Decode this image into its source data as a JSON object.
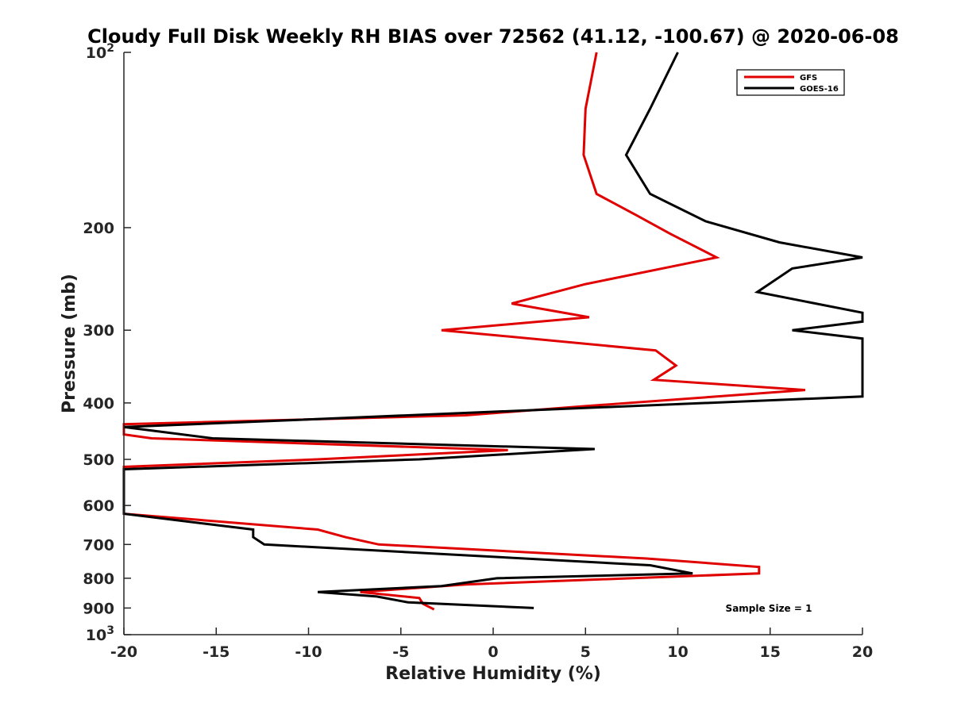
{
  "chart_data": {
    "type": "line",
    "title": "Cloudy Full Disk Weekly RH BIAS over 72562 (41.12, -100.67) @ 2020-06-08",
    "xlabel": "Relative Humidity (%)",
    "ylabel": "Pressure (mb)",
    "xlim": [
      -20,
      20
    ],
    "ylim": [
      100,
      1000
    ],
    "y_scale": "log",
    "y_reversed": true,
    "grid": false,
    "legend_placement": "top-right",
    "x_ticks": [
      "-20",
      "-15",
      "-10",
      "-5",
      "0",
      "5",
      "10",
      "15",
      "20"
    ],
    "y_ticks": [
      {
        "value": 100,
        "base": "10",
        "exp": "2"
      },
      {
        "value": 200,
        "label": "200"
      },
      {
        "value": 300,
        "label": "300"
      },
      {
        "value": 400,
        "label": "400"
      },
      {
        "value": 500,
        "label": "500"
      },
      {
        "value": 600,
        "label": "600"
      },
      {
        "value": 700,
        "label": "700"
      },
      {
        "value": 800,
        "label": "800"
      },
      {
        "value": 900,
        "label": "900"
      },
      {
        "value": 1000,
        "base": "10",
        "exp": "3"
      }
    ],
    "series": [
      {
        "name": "GFS",
        "color": "#e00000",
        "points": [
          [
            5.6,
            100
          ],
          [
            5.0,
            125
          ],
          [
            4.9,
            150
          ],
          [
            5.6,
            175
          ],
          [
            7.7,
            190
          ],
          [
            9.6,
            205
          ],
          [
            12.1,
            225
          ],
          [
            5.0,
            250
          ],
          [
            1.0,
            270
          ],
          [
            5.2,
            285
          ],
          [
            -2.8,
            300
          ],
          [
            8.8,
            325
          ],
          [
            9.9,
            345
          ],
          [
            8.7,
            365
          ],
          [
            16.9,
            380
          ],
          [
            5.0,
            405
          ],
          [
            -1.5,
            420
          ],
          [
            -20,
            435
          ],
          [
            -20,
            453
          ],
          [
            -18.5,
            460
          ],
          [
            0.8,
            482
          ],
          [
            -9.5,
            500
          ],
          [
            -20,
            515
          ],
          [
            -20,
            620
          ],
          [
            -9.5,
            660
          ],
          [
            -8.0,
            680
          ],
          [
            -6.2,
            700
          ],
          [
            8.3,
            740
          ],
          [
            14.4,
            765
          ],
          [
            14.4,
            785
          ],
          [
            -1.5,
            820
          ],
          [
            -7.2,
            845
          ],
          [
            -4.0,
            865
          ],
          [
            -3.8,
            885
          ],
          [
            -3.2,
            905
          ]
        ]
      },
      {
        "name": "GOES-16",
        "color": "#000000",
        "points": [
          [
            10.0,
            100
          ],
          [
            8.5,
            125
          ],
          [
            7.2,
            150
          ],
          [
            8.5,
            175
          ],
          [
            11.5,
            195
          ],
          [
            15.5,
            212
          ],
          [
            20,
            225
          ],
          [
            16.2,
            235
          ],
          [
            14.3,
            258
          ],
          [
            20,
            280
          ],
          [
            20,
            290
          ],
          [
            16.2,
            300
          ],
          [
            20,
            310
          ],
          [
            20,
            390
          ],
          [
            -20,
            440
          ],
          [
            -15.2,
            460
          ],
          [
            5.5,
            480
          ],
          [
            -4.0,
            500
          ],
          [
            -20,
            520
          ],
          [
            -20,
            620
          ],
          [
            -13.0,
            660
          ],
          [
            -13.0,
            680
          ],
          [
            -12.4,
            700
          ],
          [
            8.5,
            760
          ],
          [
            10.8,
            785
          ],
          [
            0.2,
            800
          ],
          [
            -2.8,
            825
          ],
          [
            -9.5,
            845
          ],
          [
            -6.3,
            860
          ],
          [
            -4.6,
            880
          ],
          [
            2.2,
            900
          ]
        ]
      }
    ],
    "annotation": "Sample Size = 1"
  }
}
